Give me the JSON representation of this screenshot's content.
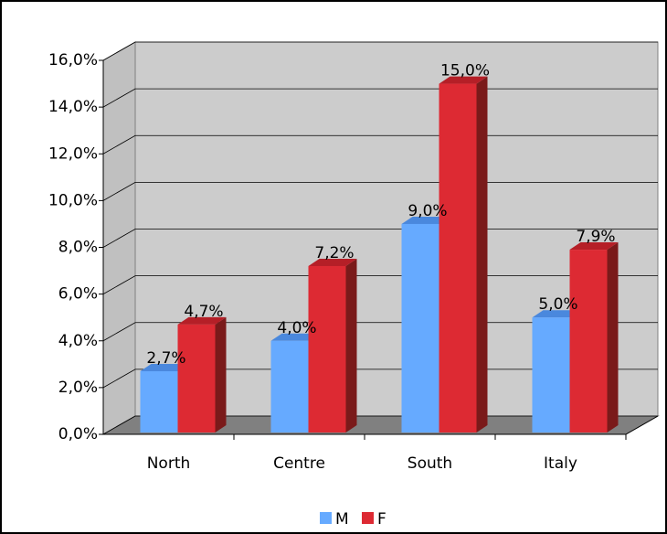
{
  "chart_data": {
    "type": "bar3d",
    "categories": [
      "North",
      "Centre",
      "South",
      "Italy"
    ],
    "series": [
      {
        "name": "M",
        "color": "#66aaff",
        "values": [
          2.7,
          4.0,
          9.0,
          5.0
        ],
        "value_labels": [
          "2,7%",
          "4,0%",
          "9,0%",
          "5,0%"
        ]
      },
      {
        "name": "F",
        "color": "#dd2a33",
        "values": [
          4.7,
          7.2,
          15.0,
          7.9
        ],
        "value_labels": [
          "4,7%",
          "7,2%",
          "15,0%",
          "7,9%"
        ]
      }
    ],
    "ylim": [
      0,
      16
    ],
    "yticks": [
      {
        "value": 0,
        "label": "0,0%"
      },
      {
        "value": 2,
        "label": "2,0%"
      },
      {
        "value": 4,
        "label": "4,0%"
      },
      {
        "value": 6,
        "label": "6,0%"
      },
      {
        "value": 8,
        "label": "8,0%"
      },
      {
        "value": 10,
        "label": "10,0%"
      },
      {
        "value": 12,
        "label": "12,0%"
      },
      {
        "value": 14,
        "label": "14,0%"
      },
      {
        "value": 16,
        "label": "16,0%"
      }
    ],
    "grid": true,
    "legend": "bottom"
  }
}
